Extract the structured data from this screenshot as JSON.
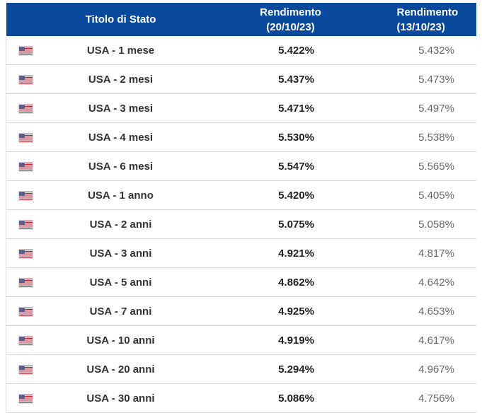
{
  "colors": {
    "header_bg": "#0A4A9E",
    "header_text": "#ffffff",
    "row_border": "#d8d8d8",
    "bond_name_text": "#333333",
    "yield_current_text": "#222222",
    "yield_previous_text": "#666666",
    "flag_red": "#b73043",
    "flag_blue": "#3c3b6e"
  },
  "table": {
    "headers": [
      {
        "label": "Titolo di Stato",
        "sublabel": ""
      },
      {
        "label": "Rendimento",
        "sublabel": "(20/10/23)"
      },
      {
        "label": "Rendimento",
        "sublabel": "(13/10/23)"
      }
    ],
    "rows": [
      {
        "flag_icon": "usa-flag-icon",
        "name": "USA - 1 mese",
        "yield_current": "5.422%",
        "yield_previous": "5.432%"
      },
      {
        "flag_icon": "usa-flag-icon",
        "name": "USA - 2 mesi",
        "yield_current": "5.437%",
        "yield_previous": "5.473%"
      },
      {
        "flag_icon": "usa-flag-icon",
        "name": "USA - 3 mesi",
        "yield_current": "5.471%",
        "yield_previous": "5.497%"
      },
      {
        "flag_icon": "usa-flag-icon",
        "name": "USA - 4 mesi",
        "yield_current": "5.530%",
        "yield_previous": "5.538%"
      },
      {
        "flag_icon": "usa-flag-icon",
        "name": "USA - 6 mesi",
        "yield_current": "5.547%",
        "yield_previous": "5.565%"
      },
      {
        "flag_icon": "usa-flag-icon",
        "name": "USA - 1 anno",
        "yield_current": "5.420%",
        "yield_previous": "5.405%"
      },
      {
        "flag_icon": "usa-flag-icon",
        "name": "USA - 2 anni",
        "yield_current": "5.075%",
        "yield_previous": "5.058%"
      },
      {
        "flag_icon": "usa-flag-icon",
        "name": "USA - 3 anni",
        "yield_current": "4.921%",
        "yield_previous": "4.817%"
      },
      {
        "flag_icon": "usa-flag-icon",
        "name": "USA - 5 anni",
        "yield_current": "4.862%",
        "yield_previous": "4.642%"
      },
      {
        "flag_icon": "usa-flag-icon",
        "name": "USA - 7 anni",
        "yield_current": "4.925%",
        "yield_previous": "4.653%"
      },
      {
        "flag_icon": "usa-flag-icon",
        "name": "USA - 10 anni",
        "yield_current": "4.919%",
        "yield_previous": "4.617%"
      },
      {
        "flag_icon": "usa-flag-icon",
        "name": "USA - 20 anni",
        "yield_current": "5.294%",
        "yield_previous": "4.967%"
      },
      {
        "flag_icon": "usa-flag-icon",
        "name": "USA - 30 anni",
        "yield_current": "5.086%",
        "yield_previous": "4.756%"
      }
    ]
  }
}
